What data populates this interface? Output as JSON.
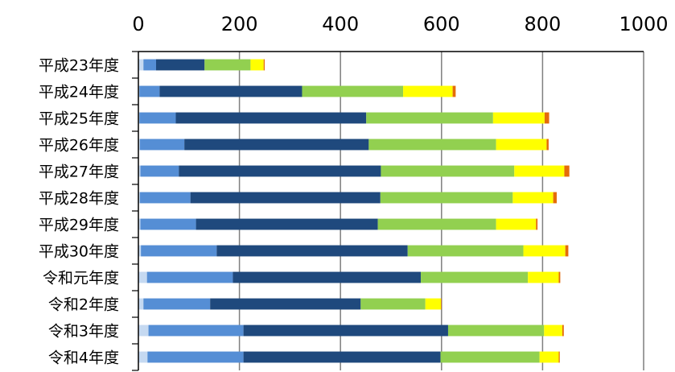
{
  "chart_data": {
    "type": "bar",
    "orientation": "horizontal",
    "stacked": true,
    "title": "",
    "xlabel": "",
    "ylabel": "",
    "xlim": [
      0,
      1000
    ],
    "xticks": [
      "0",
      "200",
      "400",
      "600",
      "800",
      "1000"
    ],
    "x_axis_position": "top",
    "grid": true,
    "legend": "none",
    "categories": [
      "平成23年度",
      "平成24年度",
      "平成25年度",
      "平成26年度",
      "平成27年度",
      "平成28年度",
      "平成29年度",
      "平成30年度",
      "令和元年度",
      "令和2年度",
      "令和3年度",
      "令和4年度"
    ],
    "series": [
      {
        "color": "#c5d9f1",
        "values": [
          10,
          2,
          2,
          3,
          4,
          3,
          4,
          5,
          17,
          10,
          20,
          18
        ]
      },
      {
        "color": "#558ed5",
        "values": [
          25,
          40,
          72,
          88,
          76,
          100,
          110,
          150,
          170,
          132,
          188,
          190
        ]
      },
      {
        "color": "#1f497d",
        "values": [
          96,
          282,
          377,
          365,
          400,
          376,
          360,
          378,
          372,
          298,
          405,
          390
        ]
      },
      {
        "color": "#92d050",
        "values": [
          91,
          200,
          251,
          252,
          264,
          262,
          234,
          229,
          212,
          128,
          190,
          196
        ]
      },
      {
        "color": "#ffff00",
        "values": [
          26,
          98,
          102,
          100,
          99,
          80,
          79,
          83,
          61,
          31,
          36,
          38
        ]
      },
      {
        "color": "#e46c0a",
        "values": [
          2,
          6,
          9,
          4,
          10,
          7,
          3,
          6,
          3,
          1,
          3,
          2
        ]
      }
    ]
  }
}
